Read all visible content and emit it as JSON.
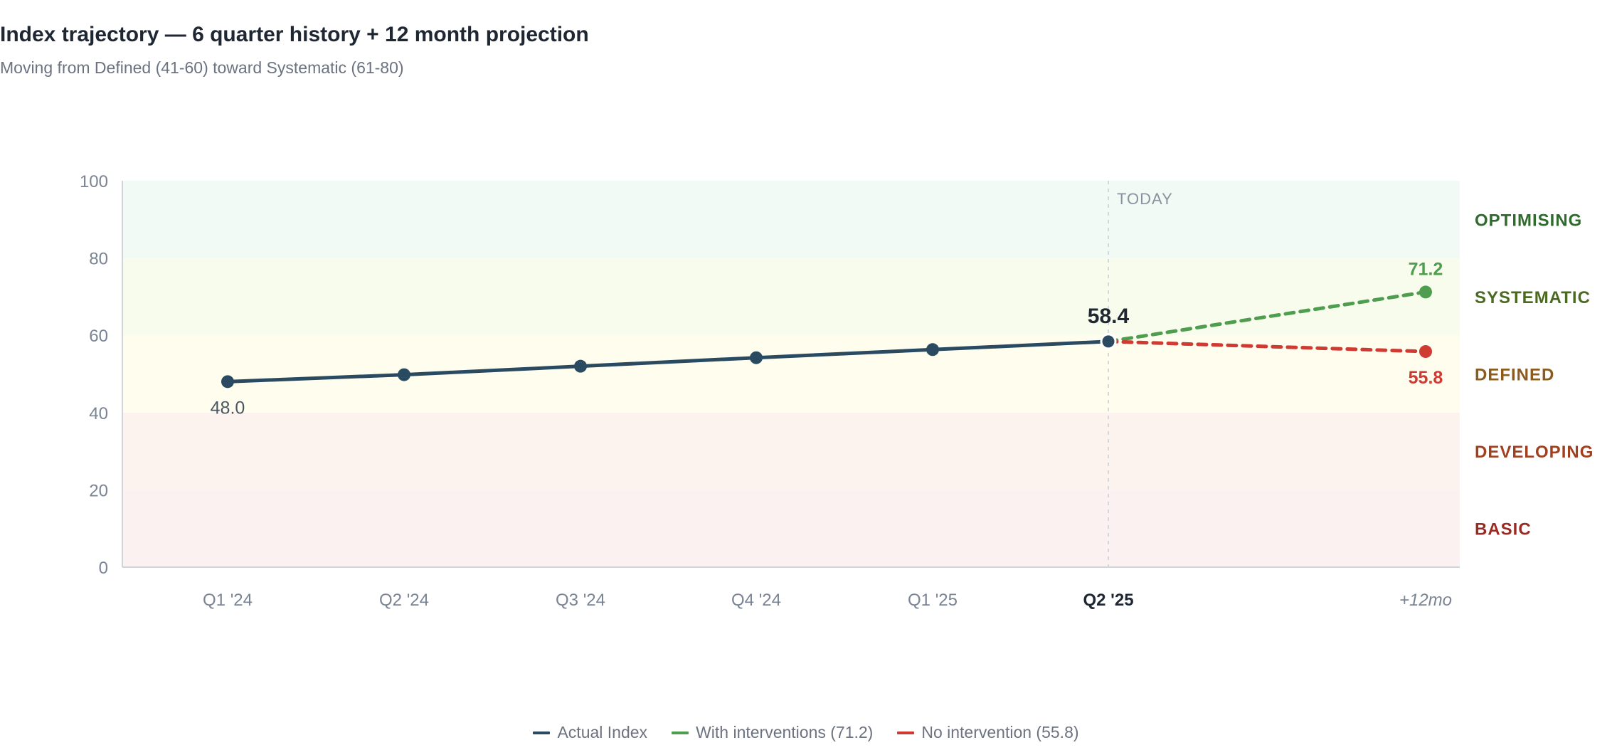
{
  "header": {
    "title": "Index trajectory — 6 quarter history + 12 month projection",
    "subtitle": "Moving from Defined (41-60) toward Systematic (61-80)"
  },
  "chart_data": {
    "type": "line",
    "title": "Index trajectory — 6 quarter history + 12 month projection",
    "subtitle": "Moving from Defined (41-60) toward Systematic (61-80)",
    "categories": [
      "Q1 '24",
      "Q2 '24",
      "Q3 '24",
      "Q4 '24",
      "Q1 '25",
      "Q2 '25",
      "+12mo"
    ],
    "highlight_category": "Q2 '25",
    "ylim": [
      0,
      100
    ],
    "yticks": [
      0,
      20,
      40,
      60,
      80,
      100
    ],
    "today_label": "TODAY",
    "bands": [
      {
        "label": "BASIC",
        "from": 0,
        "to": 20,
        "fill": "#fbf1f1",
        "text_color": "#9b2a22"
      },
      {
        "label": "DEVELOPING",
        "from": 20,
        "to": 40,
        "fill": "#fcf3ef",
        "text_color": "#a1401f"
      },
      {
        "label": "DEFINED",
        "from": 40,
        "to": 60,
        "fill": "#fefdee",
        "text_color": "#8a5a1f"
      },
      {
        "label": "SYSTEMATIC",
        "from": 60,
        "to": 80,
        "fill": "#f8fcec",
        "text_color": "#4a6a1f"
      },
      {
        "label": "OPTIMISING",
        "from": 80,
        "to": 100,
        "fill": "#f1faf4",
        "text_color": "#2f6b2c"
      }
    ],
    "series": [
      {
        "name": "Actual Index",
        "color": "#2a4a62",
        "dashed": false,
        "x": [
          "Q1 '24",
          "Q2 '24",
          "Q3 '24",
          "Q4 '24",
          "Q1 '25",
          "Q2 '25"
        ],
        "values": [
          48.0,
          49.8,
          52.0,
          54.2,
          56.3,
          58.4
        ]
      },
      {
        "name": "With interventions (71.2)",
        "color": "#4f9e4f",
        "dashed": true,
        "x": [
          "Q2 '25",
          "+12mo"
        ],
        "values": [
          58.4,
          71.2
        ]
      },
      {
        "name": "No intervention (55.8)",
        "color": "#cf3a33",
        "dashed": true,
        "x": [
          "Q2 '25",
          "+12mo"
        ],
        "values": [
          58.4,
          55.8
        ]
      }
    ],
    "data_labels": [
      {
        "text": "48.0",
        "value": 48.0,
        "category": "Q1 '24",
        "color": "#4b5563",
        "bold": false,
        "pos": "below"
      },
      {
        "text": "58.4",
        "value": 58.4,
        "category": "Q2 '25",
        "color": "#1f2733",
        "bold": true,
        "pos": "above"
      },
      {
        "text": "71.2",
        "value": 71.2,
        "category": "+12mo",
        "color": "#4f9e4f",
        "bold": true,
        "pos": "above"
      },
      {
        "text": "55.8",
        "value": 55.8,
        "category": "+12mo",
        "color": "#cf3a33",
        "bold": true,
        "pos": "below"
      }
    ],
    "legend": {
      "position": "bottom",
      "items": [
        "Actual Index",
        "With interventions (71.2)",
        "No intervention (55.8)"
      ]
    },
    "grid": false
  }
}
